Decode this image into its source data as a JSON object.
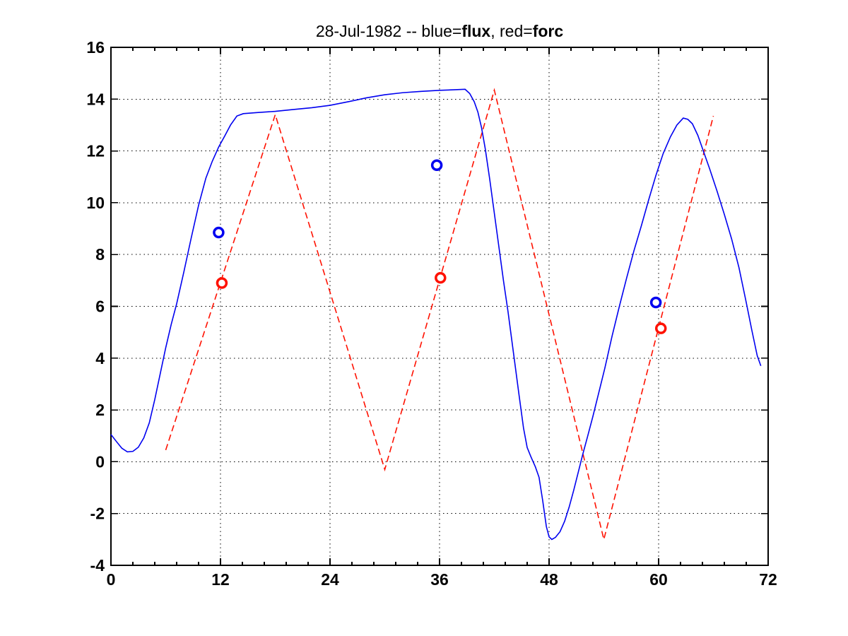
{
  "figure": {
    "background": "#ffffff",
    "title": {
      "full_text": "28-Jul-1982 -- blue=flux, red=forc",
      "segments": [
        {
          "text": "28-Jul-1982 -- blue=",
          "bold": false
        },
        {
          "text": "flux",
          "bold": true
        },
        {
          "text": ", red=",
          "bold": false
        },
        {
          "text": "forc",
          "bold": true
        }
      ]
    }
  },
  "chart_data": {
    "type": "line",
    "title": "28-Jul-1982 -- blue=flux, red=forc",
    "xlabel": "",
    "ylabel": "",
    "xlim": [
      0,
      72
    ],
    "ylim": [
      -4,
      16
    ],
    "xticks": [
      0,
      12,
      24,
      36,
      48,
      60,
      72
    ],
    "xtick_labels": [
      "0",
      "12",
      "24",
      "36",
      "48",
      "60",
      "72"
    ],
    "x_minor_divisions": 5,
    "yticks": [
      -4,
      -2,
      0,
      2,
      4,
      6,
      8,
      10,
      12,
      14,
      16
    ],
    "ytick_labels": [
      "-4",
      "-2",
      "0",
      "2",
      "4",
      "6",
      "8",
      "10",
      "12",
      "14",
      "16"
    ],
    "grid": {
      "on": true,
      "style": "dotted",
      "color": "#000000"
    },
    "axes_color": "#000000",
    "legend_position": "encoded-in-title",
    "series": [
      {
        "name": "forc",
        "kind": "line",
        "line_style": "dashed",
        "color": "#ff1100",
        "points": [
          [
            6,
            0.45
          ],
          [
            18,
            13.4
          ],
          [
            30,
            -0.3
          ],
          [
            42,
            14.35
          ],
          [
            54,
            -3.0
          ],
          [
            66,
            13.35
          ]
        ]
      },
      {
        "name": "flux",
        "kind": "line",
        "line_style": "solid",
        "color": "#0000f0",
        "points": [
          [
            0,
            1.05
          ],
          [
            0.6,
            0.78
          ],
          [
            1.2,
            0.52
          ],
          [
            1.8,
            0.38
          ],
          [
            2.4,
            0.4
          ],
          [
            3.0,
            0.56
          ],
          [
            3.6,
            0.92
          ],
          [
            4.2,
            1.5
          ],
          [
            4.8,
            2.4
          ],
          [
            5.4,
            3.4
          ],
          [
            6.0,
            4.4
          ],
          [
            6.6,
            5.3
          ],
          [
            7.2,
            6.1
          ],
          [
            8.0,
            7.35
          ],
          [
            8.8,
            8.65
          ],
          [
            9.6,
            9.9
          ],
          [
            10.4,
            10.95
          ],
          [
            11.1,
            11.6
          ],
          [
            11.8,
            12.15
          ],
          [
            12.5,
            12.6
          ],
          [
            13.1,
            13.0
          ],
          [
            13.8,
            13.35
          ],
          [
            14.5,
            13.44
          ],
          [
            16,
            13.48
          ],
          [
            18,
            13.53
          ],
          [
            20,
            13.6
          ],
          [
            22,
            13.67
          ],
          [
            24,
            13.76
          ],
          [
            26,
            13.9
          ],
          [
            28,
            14.05
          ],
          [
            30,
            14.17
          ],
          [
            32,
            14.25
          ],
          [
            34,
            14.3
          ],
          [
            36,
            14.34
          ],
          [
            37.5,
            14.36
          ],
          [
            38.8,
            14.38
          ],
          [
            39.3,
            14.22
          ],
          [
            39.8,
            13.9
          ],
          [
            40.2,
            13.5
          ],
          [
            40.6,
            12.9
          ],
          [
            41.0,
            12.1
          ],
          [
            41.5,
            10.9
          ],
          [
            42.0,
            9.6
          ],
          [
            42.5,
            8.3
          ],
          [
            43.0,
            7.0
          ],
          [
            43.5,
            5.8
          ],
          [
            44.1,
            4.2
          ],
          [
            44.7,
            2.6
          ],
          [
            45.2,
            1.3
          ],
          [
            45.6,
            0.55
          ],
          [
            46.0,
            0.2
          ],
          [
            46.5,
            -0.2
          ],
          [
            46.9,
            -0.6
          ],
          [
            47.3,
            -1.5
          ],
          [
            47.7,
            -2.5
          ],
          [
            48.0,
            -2.9
          ],
          [
            48.3,
            -3.0
          ],
          [
            48.7,
            -2.92
          ],
          [
            49.2,
            -2.7
          ],
          [
            49.7,
            -2.3
          ],
          [
            50.2,
            -1.75
          ],
          [
            50.7,
            -1.1
          ],
          [
            51.2,
            -0.4
          ],
          [
            51.7,
            0.3
          ],
          [
            52.2,
            0.95
          ],
          [
            52.8,
            1.75
          ],
          [
            53.4,
            2.6
          ],
          [
            54.1,
            3.6
          ],
          [
            54.9,
            4.85
          ],
          [
            55.7,
            6.0
          ],
          [
            56.5,
            7.1
          ],
          [
            57.3,
            8.15
          ],
          [
            58.1,
            9.1
          ],
          [
            58.9,
            10.1
          ],
          [
            59.7,
            11.05
          ],
          [
            60.5,
            11.9
          ],
          [
            61.3,
            12.55
          ],
          [
            62.0,
            13.0
          ],
          [
            62.7,
            13.27
          ],
          [
            63.2,
            13.22
          ],
          [
            63.7,
            13.05
          ],
          [
            64.3,
            12.6
          ],
          [
            64.9,
            12.0
          ],
          [
            65.6,
            11.3
          ],
          [
            66.4,
            10.45
          ],
          [
            67.2,
            9.55
          ],
          [
            68.0,
            8.6
          ],
          [
            68.8,
            7.5
          ],
          [
            69.6,
            6.15
          ],
          [
            70.2,
            5.1
          ],
          [
            70.8,
            4.1
          ],
          [
            71.2,
            3.7
          ]
        ]
      },
      {
        "name": "forc-markers",
        "kind": "scatter",
        "marker": "open-circle",
        "color": "#ff1100",
        "points": [
          [
            12.15,
            6.9
          ],
          [
            36.1,
            7.1
          ],
          [
            60.25,
            5.15
          ]
        ]
      },
      {
        "name": "flux-markers",
        "kind": "scatter",
        "marker": "open-circle",
        "color": "#0000f0",
        "points": [
          [
            11.8,
            8.85
          ],
          [
            35.7,
            11.45
          ],
          [
            59.7,
            6.15
          ]
        ]
      }
    ]
  }
}
